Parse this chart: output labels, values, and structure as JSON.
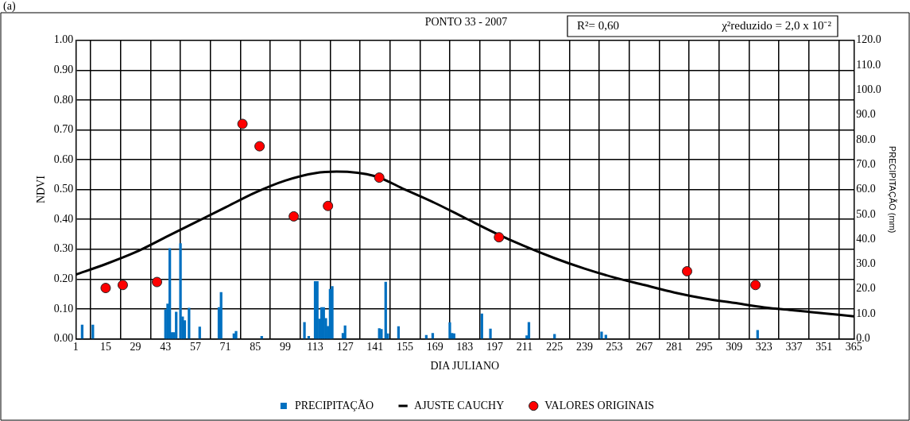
{
  "chart_data": {
    "type": "line",
    "title": "PONTO 33 - 2007",
    "xlabel": "DIA JULIANO",
    "ylabel": "NDVI",
    "y2label": "PRECIPITAÇÃO (mm)",
    "annotations": [
      "(a)",
      "R²= 0,60",
      "χ²reduzido = 2,0 x 10⁻²"
    ],
    "xlim": [
      1,
      365
    ],
    "xticks": [
      1,
      15,
      29,
      43,
      57,
      71,
      85,
      99,
      113,
      127,
      141,
      155,
      169,
      183,
      197,
      211,
      225,
      239,
      253,
      267,
      281,
      295,
      309,
      323,
      337,
      351,
      365
    ],
    "ylim": [
      0,
      1
    ],
    "yticks": [
      {
        "value": 0,
        "label": "0.00"
      },
      {
        "value": 0.1,
        "label": "0.10"
      },
      {
        "value": 0.2,
        "label": "0.20"
      },
      {
        "value": 0.3,
        "label": "0.30"
      },
      {
        "value": 0.4,
        "label": "0.40"
      },
      {
        "value": 0.5,
        "label": "0.50"
      },
      {
        "value": 0.6,
        "label": "0.60"
      },
      {
        "value": 0.7,
        "label": "0.70"
      },
      {
        "value": 0.8,
        "label": "0.80"
      },
      {
        "value": 0.9,
        "label": "0.90"
      },
      {
        "value": 1,
        "label": "1.00"
      }
    ],
    "y2lim": [
      0,
      120
    ],
    "y2ticks": [
      {
        "value": 0,
        "label": "0.0"
      },
      {
        "value": 10,
        "label": "10.0"
      },
      {
        "value": 20,
        "label": "20.0"
      },
      {
        "value": 30,
        "label": "30.0"
      },
      {
        "value": 40,
        "label": "40.0"
      },
      {
        "value": 50,
        "label": "50.0"
      },
      {
        "value": 60,
        "label": "60.0"
      },
      {
        "value": 70,
        "label": "70.0"
      },
      {
        "value": 80,
        "label": "80.0"
      },
      {
        "value": 90,
        "label": "90.0"
      },
      {
        "value": 100,
        "label": "100.0"
      },
      {
        "value": 110,
        "label": "110.0"
      },
      {
        "value": 120,
        "label": "120.0"
      }
    ],
    "grid": true,
    "legend": "bottom",
    "series": [
      {
        "name": "PRECIPITAÇÃO",
        "type": "bar",
        "axis": "y2",
        "color": "#0070c0",
        "x": [
          4,
          9,
          43,
          44,
          45,
          46,
          47,
          48,
          50,
          51,
          52,
          54,
          59,
          68,
          69,
          75,
          76,
          88,
          108,
          110,
          113,
          114,
          115,
          116,
          117,
          118,
          119,
          120,
          121,
          126,
          127,
          143,
          144,
          146,
          147,
          152,
          165,
          168,
          176,
          177,
          178,
          191,
          195,
          212,
          213,
          225,
          247,
          249,
          320
        ],
        "values": [
          5.5,
          5.5,
          11.7,
          14,
          36.3,
          2.5,
          2.5,
          10.7,
          38.3,
          8.8,
          7.3,
          12.3,
          4.7,
          12.6,
          18.6,
          2,
          3,
          1,
          6.6,
          1,
          23,
          23,
          7.9,
          12.6,
          12.6,
          8.2,
          5,
          19.9,
          21,
          2.2,
          5.2,
          4.1,
          3.8,
          22.8,
          2,
          4.9,
          1.4,
          2.2,
          6.5,
          2.2,
          2,
          10,
          3.9,
          1.2,
          6.6,
          1.8,
          2.7,
          1.5,
          3.4
        ]
      },
      {
        "name": "AJUSTE CAUCHY",
        "color": "#000000",
        "marker": "none",
        "line_style": "solid",
        "x": [
          1,
          15,
          29,
          43,
          57,
          71,
          85,
          99,
          113,
          123,
          141,
          155,
          169,
          183,
          197,
          211,
          225,
          239,
          253,
          267,
          281,
          295,
          309,
          323,
          337,
          351,
          365
        ],
        "values": [
          0.215,
          0.25,
          0.29,
          0.34,
          0.39,
          0.44,
          0.49,
          0.53,
          0.555,
          0.56,
          0.545,
          0.5,
          0.455,
          0.405,
          0.355,
          0.31,
          0.27,
          0.235,
          0.205,
          0.18,
          0.155,
          0.135,
          0.12,
          0.105,
          0.095,
          0.085,
          0.075
        ]
      },
      {
        "name": "VALORES ORIGINAIS",
        "type": "scatter",
        "color": "#ff0000",
        "marker": "circle",
        "x": [
          15,
          23,
          39,
          79,
          87,
          103,
          119,
          143,
          199,
          287,
          319
        ],
        "values": [
          0.17,
          0.18,
          0.19,
          0.72,
          0.645,
          0.41,
          0.445,
          0.54,
          0.34,
          0.226,
          0.18
        ]
      }
    ]
  }
}
